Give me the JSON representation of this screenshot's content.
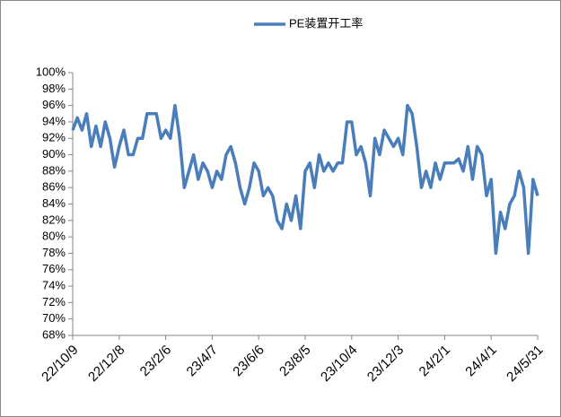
{
  "chart_data": {
    "type": "line",
    "categories": [
      "22/10/9",
      null,
      null,
      null,
      null,
      null,
      null,
      null,
      null,
      null,
      "22/12/8",
      null,
      null,
      null,
      null,
      null,
      null,
      null,
      null,
      null,
      "23/2/6",
      null,
      null,
      null,
      null,
      null,
      null,
      null,
      null,
      null,
      "23/4/7",
      null,
      null,
      null,
      null,
      null,
      null,
      null,
      null,
      null,
      "23/6/6",
      null,
      null,
      null,
      null,
      null,
      null,
      null,
      null,
      null,
      "23/8/5",
      null,
      null,
      null,
      null,
      null,
      null,
      null,
      null,
      null,
      "23/10/4",
      null,
      null,
      null,
      null,
      null,
      null,
      null,
      null,
      null,
      "23/12/3",
      null,
      null,
      null,
      null,
      null,
      null,
      null,
      null,
      null,
      "24/2/1",
      null,
      null,
      null,
      null,
      null,
      null,
      null,
      null,
      null,
      "24/4/1",
      null,
      null,
      null,
      null,
      null,
      null,
      null,
      null,
      null,
      "24/5/31"
    ],
    "series": [
      {
        "name": "PE装置开工率",
        "color": "#4a7ebb",
        "values": [
          93,
          94.5,
          93,
          95,
          91,
          93.5,
          91,
          94,
          92,
          88.5,
          91,
          93,
          90,
          90,
          92,
          92,
          95,
          95,
          95,
          92,
          93,
          92,
          96,
          92,
          86,
          88,
          90,
          87,
          89,
          88,
          86,
          88,
          87,
          90,
          91,
          89,
          86,
          84,
          86,
          89,
          88,
          85,
          86,
          85,
          82,
          81,
          84,
          82,
          85,
          81,
          88,
          89,
          86,
          90,
          88,
          89,
          88,
          89,
          89,
          94,
          94,
          90,
          91,
          89,
          85,
          92,
          90,
          93,
          92,
          91,
          92,
          90,
          96,
          95,
          91,
          86,
          88,
          86,
          89,
          87,
          89,
          89,
          89,
          89.5,
          88,
          91,
          87,
          91,
          90,
          85,
          87,
          78,
          83,
          81,
          84,
          85,
          88,
          86,
          78,
          87,
          85
        ]
      }
    ],
    "ylim": [
      68,
      100
    ],
    "yticks": [
      {
        "value": 68,
        "label": "68%"
      },
      {
        "value": 70,
        "label": "70%"
      },
      {
        "value": 72,
        "label": "72%"
      },
      {
        "value": 74,
        "label": "74%"
      },
      {
        "value": 76,
        "label": "76%"
      },
      {
        "value": 78,
        "label": "78%"
      },
      {
        "value": 80,
        "label": "80%"
      },
      {
        "value": 82,
        "label": "82%"
      },
      {
        "value": 84,
        "label": "84%"
      },
      {
        "value": 86,
        "label": "86%"
      },
      {
        "value": 88,
        "label": "88%"
      },
      {
        "value": 90,
        "label": "90%"
      },
      {
        "value": 92,
        "label": "92%"
      },
      {
        "value": 94,
        "label": "94%"
      },
      {
        "value": 96,
        "label": "96%"
      },
      {
        "value": 98,
        "label": "98%"
      },
      {
        "value": 100,
        "label": "100%"
      }
    ],
    "grid": false,
    "legend": "top"
  }
}
